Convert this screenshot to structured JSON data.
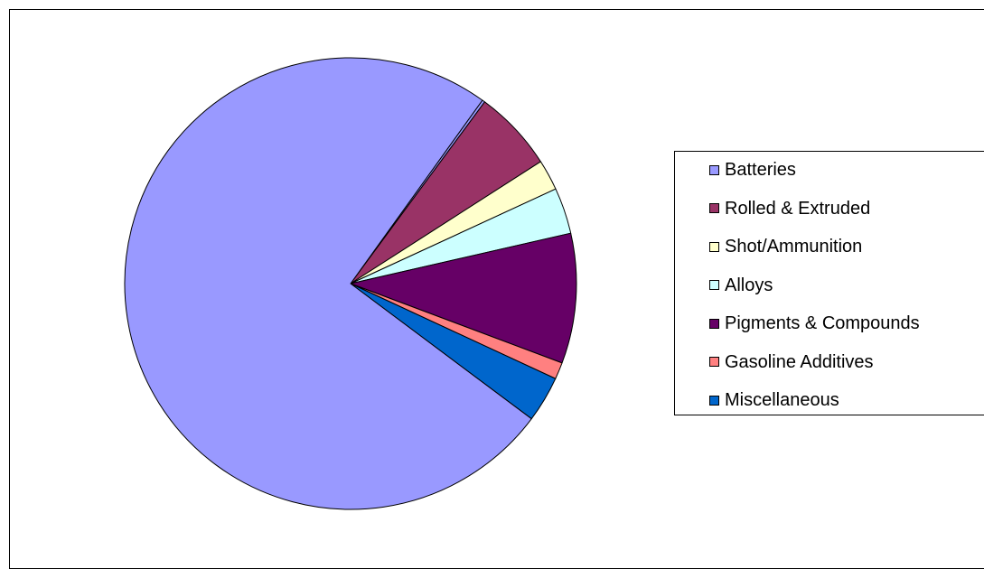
{
  "chart_data": {
    "type": "pie",
    "title": "",
    "start_angle_deg": -54.3,
    "direction": "clockwise",
    "legend_position": "right",
    "slices": [
      {
        "name": "Batteries",
        "value": 0.2,
        "color": "#9999ff"
      },
      {
        "name": "Rolled & Extruded",
        "value": 5.8,
        "color": "#993366"
      },
      {
        "name": "Shot/Ammunition",
        "value": 2.2,
        "color": "#ffffcc"
      },
      {
        "name": "Alloys",
        "value": 3.3,
        "color": "#ccffff"
      },
      {
        "name": "Pigments & Compounds",
        "value": 9.3,
        "color": "#660066"
      },
      {
        "name": "Gasoline Additives",
        "value": 1.2,
        "color": "#ff8080"
      },
      {
        "name": "Miscellaneous",
        "value": 3.3,
        "color": "#0066cc"
      },
      {
        "name": "Batteries",
        "value": 74.7,
        "color": "#9999ff"
      }
    ],
    "legend": [
      {
        "label": "Batteries",
        "color": "#9999ff"
      },
      {
        "label": "Rolled & Extruded",
        "color": "#993366"
      },
      {
        "label": "Shot/Ammunition",
        "color": "#ffffcc"
      },
      {
        "label": "Alloys",
        "color": "#ccffff"
      },
      {
        "label": "Pigments & Compounds",
        "color": "#660066"
      },
      {
        "label": "Gasoline Additives",
        "color": "#ff8080"
      },
      {
        "label": "Miscellaneous",
        "color": "#0066cc"
      }
    ]
  }
}
